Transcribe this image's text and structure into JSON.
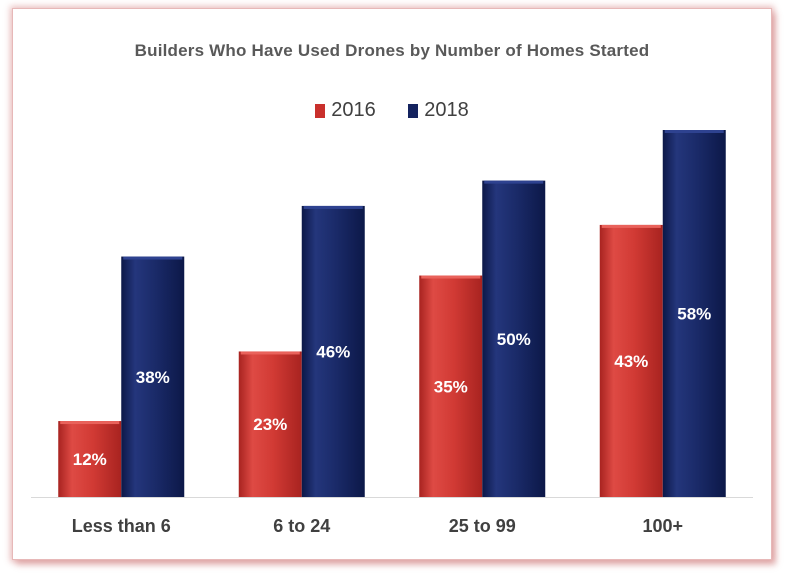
{
  "chart_data": {
    "type": "bar",
    "title": "Builders Who Have Used Drones by Number of Homes Started",
    "xlabel": "",
    "ylabel": "",
    "categories": [
      "Less than 6",
      "6 to 24",
      "25 to 99",
      "100+"
    ],
    "series": [
      {
        "name": "2016",
        "values": [
          12,
          23,
          35,
          43
        ],
        "labels": [
          "12%",
          "23%",
          "35%",
          "43%"
        ],
        "color": "#c9302c"
      },
      {
        "name": "2018",
        "values": [
          38,
          46,
          50,
          58
        ],
        "labels": [
          "38%",
          "46%",
          "50%",
          "58%"
        ],
        "color": "#14235f"
      }
    ],
    "ylim": [
      0,
      58
    ],
    "grid": false,
    "legend_position": "top-center",
    "value_unit": "%"
  }
}
